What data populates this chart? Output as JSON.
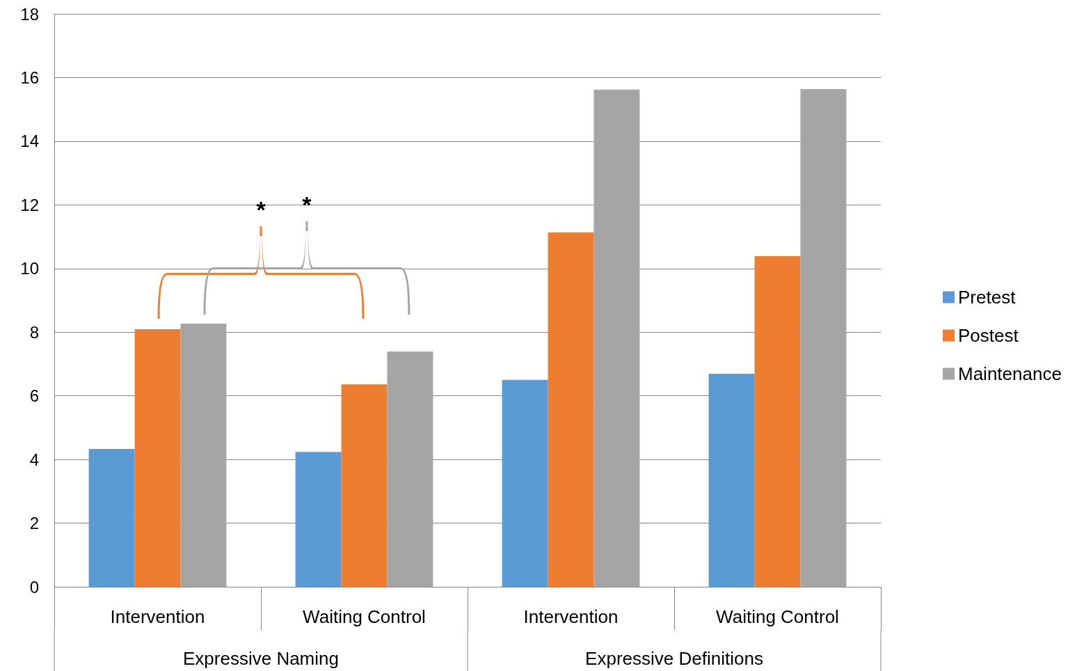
{
  "chart_data": {
    "type": "bar",
    "categories": [
      "Intervention",
      "Waiting Control",
      "Intervention",
      "Waiting Control"
    ],
    "series": [
      {
        "name": "Pretest",
        "color": "#5b9bd5",
        "values": [
          4.33,
          4.24,
          6.5,
          6.69
        ]
      },
      {
        "name": "Postest",
        "color": "#ed7d31",
        "values": [
          8.09,
          6.36,
          11.13,
          10.39
        ]
      },
      {
        "name": "Maintenance",
        "color": "#a5a5a5",
        "values": [
          8.27,
          7.39,
          15.62,
          15.64
        ]
      }
    ],
    "ylim": [
      0,
      18
    ],
    "yticks": [
      0,
      2,
      4,
      6,
      8,
      10,
      12,
      14,
      16,
      18
    ],
    "grid": "y",
    "legend": "right",
    "annotations": [
      "*",
      "*",
      "Expressive Naming",
      "Expressive Definitions"
    ]
  }
}
